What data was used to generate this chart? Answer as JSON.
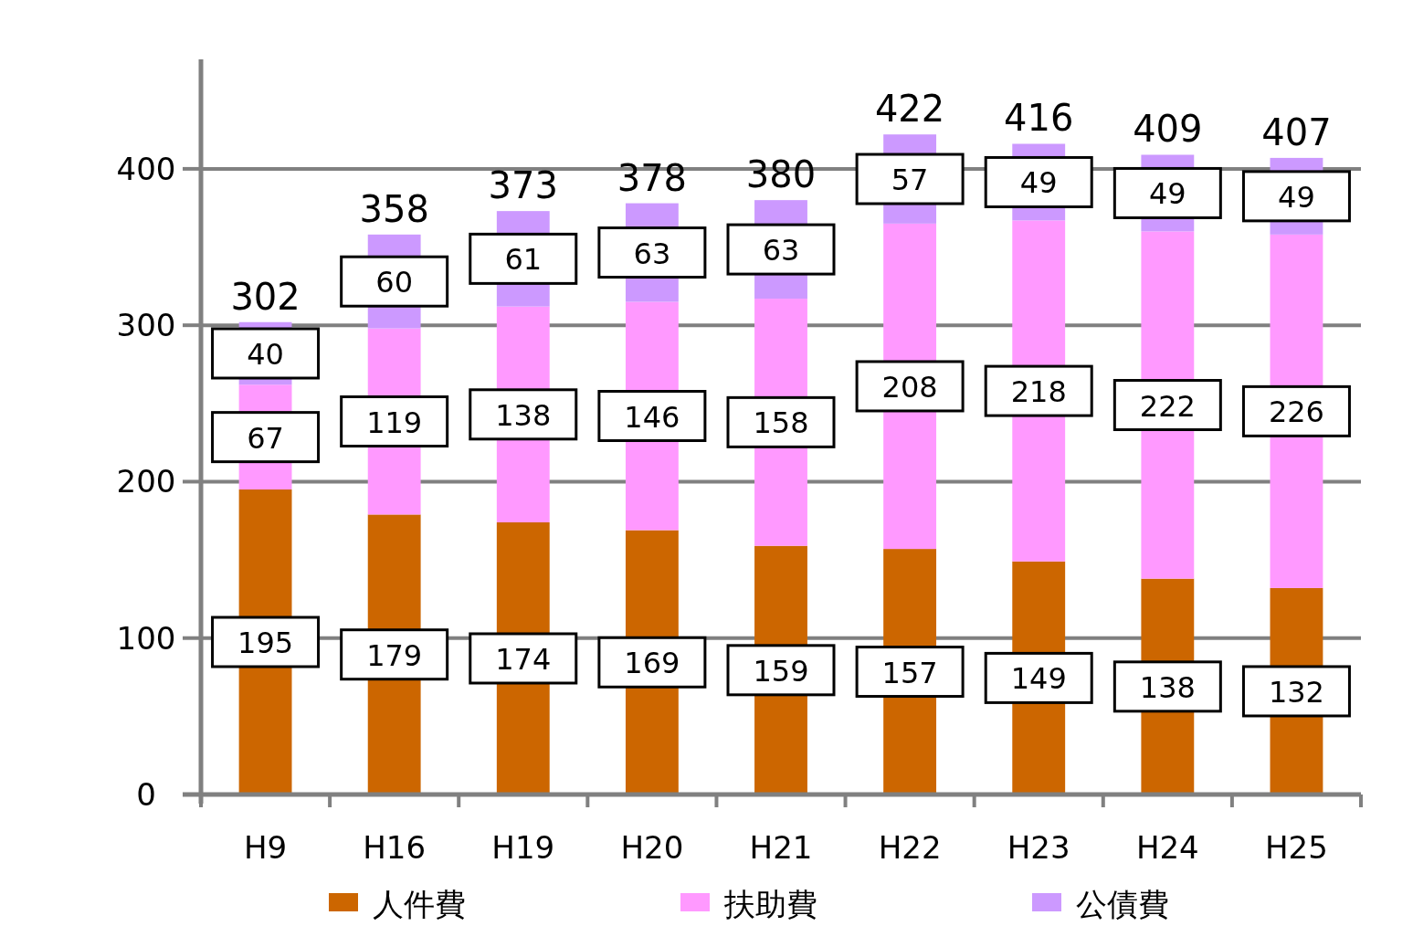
{
  "chart_data": {
    "type": "bar",
    "stacked": true,
    "categories": [
      "H9",
      "H16",
      "H19",
      "H20",
      "H21",
      "H22",
      "H23",
      "H24",
      "H25"
    ],
    "series": [
      {
        "name": "人件費",
        "color": "#cc6600",
        "values": [
          195,
          179,
          174,
          169,
          159,
          157,
          149,
          138,
          132
        ]
      },
      {
        "name": "扶助費",
        "color": "#ff99ff",
        "values": [
          67,
          119,
          138,
          146,
          158,
          208,
          218,
          222,
          226
        ]
      },
      {
        "name": "公債費",
        "color": "#cc99ff",
        "values": [
          40,
          60,
          61,
          63,
          63,
          57,
          49,
          49,
          49
        ]
      }
    ],
    "totals": [
      "302",
      "358",
      "373",
      "378",
      "380",
      "422",
      "416",
      "409",
      "407"
    ],
    "data_labels": true,
    "ylim": [
      0,
      470
    ],
    "yticks": [
      0,
      100,
      200,
      300,
      400
    ],
    "grid": "y",
    "legend": "bottom"
  }
}
